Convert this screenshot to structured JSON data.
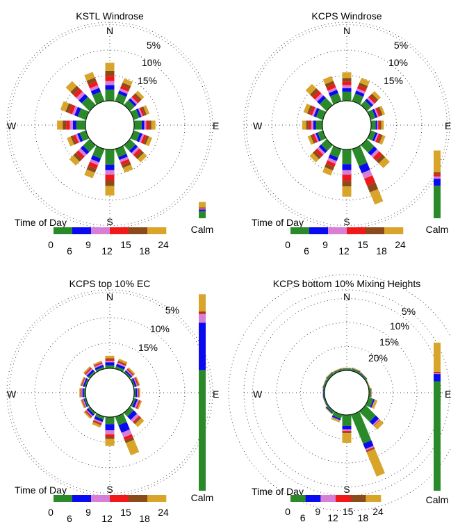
{
  "colors": {
    "t0_6": "#2a8a2a",
    "t6_9": "#0a0af0",
    "t9_12": "#d77fd7",
    "t12_15": "#f01818",
    "t15_18": "#8a4a1a",
    "t18_24": "#d9a42a"
  },
  "legend": {
    "title": "Time of Day",
    "ticks": [
      "0",
      "6",
      "9",
      "12",
      "15",
      "18",
      "24"
    ],
    "calm_label": "Calm"
  },
  "chart_data": [
    {
      "type": "windrose",
      "title": "KSTL Windrose",
      "directions": [
        "N",
        "E",
        "S",
        "W"
      ],
      "ring_labels": [
        "5%",
        "10%",
        "15%"
      ],
      "ring_values": [
        5,
        10,
        15
      ],
      "sectors_deg": [
        0,
        22.5,
        45,
        67.5,
        90,
        112.5,
        135,
        157.5,
        180,
        202.5,
        225,
        247.5,
        270,
        292.5,
        315,
        337.5
      ],
      "segments": [
        [
          2.2,
          0.9,
          0.8,
          1.0,
          1.0,
          1.6
        ],
        [
          1.6,
          0.6,
          0.5,
          0.6,
          0.6,
          0.9
        ],
        [
          1.3,
          0.5,
          0.4,
          0.5,
          0.5,
          0.7
        ],
        [
          1.2,
          0.4,
          0.3,
          0.4,
          0.4,
          0.6
        ],
        [
          1.5,
          0.5,
          0.4,
          0.5,
          0.5,
          0.8
        ],
        [
          1.3,
          0.5,
          0.4,
          0.5,
          0.5,
          0.7
        ],
        [
          1.5,
          0.6,
          0.5,
          0.6,
          0.6,
          0.9
        ],
        [
          1.7,
          0.6,
          0.5,
          0.6,
          0.6,
          1.0
        ],
        [
          3.0,
          1.1,
          0.9,
          1.1,
          1.1,
          1.9
        ],
        [
          2.0,
          0.8,
          0.6,
          0.8,
          0.8,
          1.2
        ],
        [
          1.8,
          0.7,
          0.6,
          0.7,
          0.7,
          1.1
        ],
        [
          1.3,
          0.5,
          0.4,
          0.5,
          0.5,
          0.8
        ],
        [
          1.8,
          0.7,
          0.6,
          0.7,
          0.7,
          1.1
        ],
        [
          1.7,
          0.7,
          0.5,
          0.7,
          0.7,
          1.1
        ],
        [
          2.2,
          0.8,
          0.7,
          0.8,
          0.8,
          1.3
        ],
        [
          2.0,
          0.8,
          0.6,
          0.8,
          0.8,
          1.2
        ]
      ],
      "calm": [
        4.0,
        0.8,
        0.4,
        0.4,
        0.4,
        3.0
      ]
    },
    {
      "type": "windrose",
      "title": "KCPS Windrose",
      "directions": [
        "N",
        "E",
        "S",
        "W"
      ],
      "ring_labels": [
        "5%",
        "10%",
        "15%"
      ],
      "ring_values": [
        5,
        10,
        15
      ],
      "sectors_deg": [
        0,
        22.5,
        45,
        67.5,
        90,
        112.5,
        135,
        157.5,
        180,
        202.5,
        225,
        247.5,
        270,
        292.5,
        315,
        337.5
      ],
      "segments": [
        [
          1.8,
          0.7,
          0.6,
          0.7,
          0.7,
          1.1
        ],
        [
          1.6,
          0.6,
          0.5,
          0.6,
          0.6,
          1.0
        ],
        [
          1.2,
          0.5,
          0.4,
          0.5,
          0.5,
          0.7
        ],
        [
          1.0,
          0.4,
          0.3,
          0.4,
          0.4,
          0.5
        ],
        [
          0.9,
          0.3,
          0.2,
          0.3,
          0.3,
          0.5
        ],
        [
          1.0,
          0.4,
          0.3,
          0.4,
          0.4,
          0.6
        ],
        [
          2.0,
          0.8,
          0.6,
          0.8,
          0.8,
          1.3
        ],
        [
          3.6,
          1.5,
          1.2,
          1.5,
          1.4,
          2.6
        ],
        [
          2.9,
          1.2,
          0.9,
          1.2,
          1.1,
          2.0
        ],
        [
          1.8,
          0.7,
          0.6,
          0.7,
          0.7,
          1.1
        ],
        [
          1.5,
          0.6,
          0.5,
          0.6,
          0.6,
          0.9
        ],
        [
          1.1,
          0.4,
          0.3,
          0.4,
          0.4,
          0.6
        ],
        [
          1.3,
          0.5,
          0.4,
          0.5,
          0.5,
          0.8
        ],
        [
          1.4,
          0.5,
          0.4,
          0.5,
          0.5,
          0.8
        ],
        [
          1.9,
          0.7,
          0.6,
          0.7,
          0.7,
          1.2
        ],
        [
          1.7,
          0.7,
          0.5,
          0.7,
          0.7,
          1.0
        ]
      ],
      "calm": [
        12.0,
        2.6,
        0.8,
        0.8,
        0.8,
        8.0
      ]
    },
    {
      "type": "windrose",
      "title": "KCPS top 10% EC",
      "directions": [
        "N",
        "E",
        "S",
        "W"
      ],
      "ring_labels": [
        "5%",
        "10%",
        "15%"
      ],
      "ring_values": [
        5,
        10,
        15
      ],
      "sectors_deg": [
        0,
        22.5,
        45,
        67.5,
        90,
        112.5,
        135,
        157.5,
        180,
        202.5,
        225,
        247.5,
        270,
        292.5,
        315,
        337.5
      ],
      "segments": [
        [
          0.6,
          0.6,
          0.3,
          0.3,
          0.2,
          0.5
        ],
        [
          0.5,
          0.5,
          0.3,
          0.2,
          0.2,
          0.4
        ],
        [
          0.3,
          0.3,
          0.2,
          0.2,
          0.1,
          0.3
        ],
        [
          0.3,
          0.3,
          0.2,
          0.2,
          0.1,
          0.2
        ],
        [
          0.3,
          0.3,
          0.2,
          0.1,
          0.1,
          0.2
        ],
        [
          0.4,
          0.4,
          0.3,
          0.2,
          0.1,
          0.3
        ],
        [
          1.0,
          0.9,
          0.6,
          0.3,
          0.3,
          0.8
        ],
        [
          1.8,
          1.6,
          1.0,
          0.6,
          0.6,
          2.6
        ],
        [
          1.4,
          1.2,
          0.8,
          0.5,
          0.4,
          1.4
        ],
        [
          0.6,
          0.5,
          0.3,
          0.2,
          0.2,
          0.5
        ],
        [
          0.4,
          0.4,
          0.2,
          0.2,
          0.1,
          0.3
        ],
        [
          0.3,
          0.2,
          0.2,
          0.1,
          0.1,
          0.2
        ],
        [
          0.3,
          0.3,
          0.2,
          0.1,
          0.1,
          0.2
        ],
        [
          0.3,
          0.3,
          0.2,
          0.1,
          0.1,
          0.2
        ],
        [
          0.4,
          0.4,
          0.3,
          0.2,
          0.1,
          0.3
        ],
        [
          0.4,
          0.4,
          0.3,
          0.2,
          0.1,
          0.3
        ]
      ],
      "calm": [
        28.0,
        11.0,
        2.0,
        0.3,
        0.3,
        4.0
      ]
    },
    {
      "type": "windrose",
      "title": "KCPS bottom 10% Mixing Heights",
      "directions": [
        "N",
        "E",
        "S",
        "W"
      ],
      "ring_labels": [
        "5%",
        "10%",
        "15%",
        "20%"
      ],
      "ring_values": [
        5,
        10,
        15,
        20
      ],
      "sectors_deg": [
        0,
        22.5,
        45,
        67.5,
        90,
        112.5,
        135,
        157.5,
        180,
        202.5,
        225,
        247.5,
        270,
        292.5,
        315,
        337.5
      ],
      "segments": [
        [
          0.3,
          0.1,
          0,
          0,
          0,
          0.2
        ],
        [
          0.4,
          0.1,
          0,
          0,
          0,
          0.2
        ],
        [
          0.3,
          0.1,
          0,
          0,
          0,
          0.1
        ],
        [
          0.2,
          0,
          0,
          0,
          0,
          0.1
        ],
        [
          0.3,
          0.1,
          0,
          0,
          0,
          0.2
        ],
        [
          1.0,
          0.3,
          0.1,
          0,
          0,
          0.5
        ],
        [
          3.0,
          0.9,
          0.3,
          0.1,
          0,
          1.0
        ],
        [
          6.5,
          1.2,
          0.3,
          0.2,
          0.2,
          5.5
        ],
        [
          2.3,
          0.7,
          0.3,
          0.3,
          0.2,
          2.0
        ],
        [
          0.9,
          0.3,
          0.1,
          0,
          0,
          0.4
        ],
        [
          0.4,
          0.2,
          0,
          0,
          0,
          0.2
        ],
        [
          0.2,
          0.1,
          0,
          0,
          0,
          0.1
        ],
        [
          0.2,
          0.1,
          0,
          0,
          0,
          0.1
        ],
        [
          0.3,
          0.1,
          0,
          0,
          0,
          0.1
        ],
        [
          0.4,
          0.1,
          0,
          0,
          0,
          0.2
        ],
        [
          0.3,
          0.1,
          0,
          0,
          0,
          0.2
        ]
      ],
      "calm": [
        45.0,
        3.0,
        0.3,
        0.3,
        0.3,
        12.0
      ]
    }
  ]
}
